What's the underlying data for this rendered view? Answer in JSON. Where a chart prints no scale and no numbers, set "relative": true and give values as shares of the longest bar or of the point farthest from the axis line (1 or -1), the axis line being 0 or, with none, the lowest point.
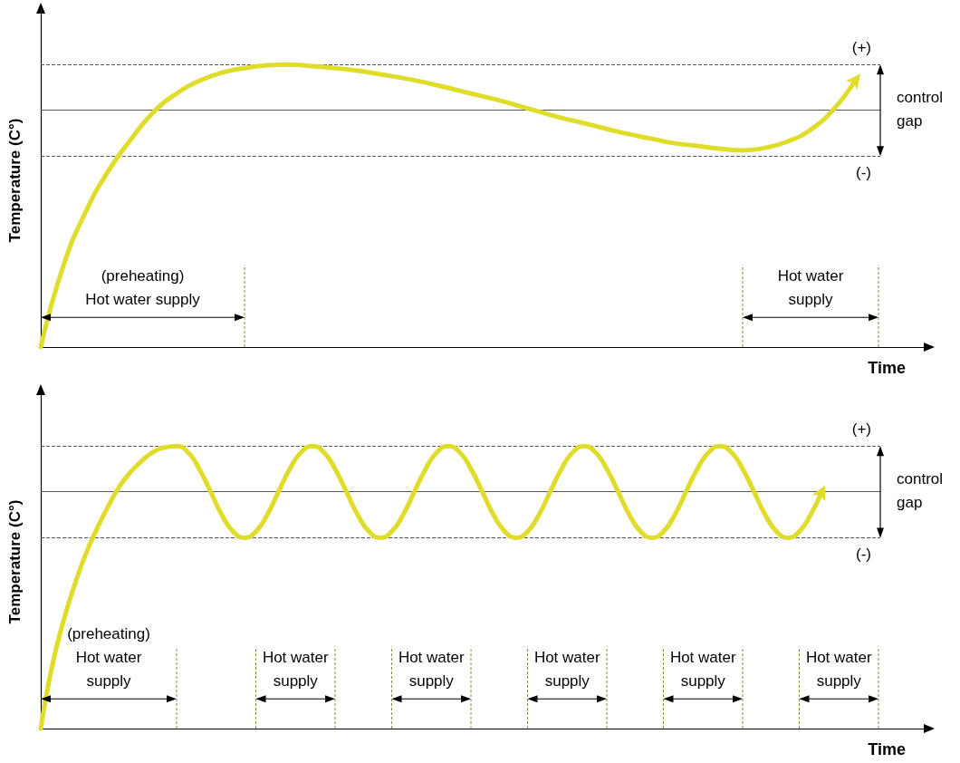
{
  "chart_data": [
    {
      "type": "line",
      "relative": true,
      "xlabel": "Time",
      "ylabel": "Temperature (C°)",
      "categories": [
        null,
        null,
        null,
        null,
        null,
        null,
        null,
        null,
        null,
        null,
        null,
        null,
        null,
        null,
        null,
        null,
        null,
        null,
        null,
        null,
        null,
        null,
        null,
        null,
        null,
        null,
        null,
        null,
        null,
        null,
        null,
        null,
        null,
        null,
        null,
        null,
        null,
        null,
        null,
        null
      ],
      "series": [
        {
          "color": "#e0dc2a",
          "values": [
            0,
            0.288,
            0.481,
            0.625,
            0.737,
            0.833,
            0.897,
            0.942,
            0.971,
            0.987,
            0.997,
            1.0,
            0.994,
            0.987,
            0.978,
            0.965,
            0.952,
            0.936,
            0.917,
            0.897,
            0.878,
            0.856,
            0.833,
            0.811,
            0.792,
            0.772,
            0.753,
            0.737,
            0.721,
            0.712,
            0.702,
            0.696,
            0.705,
            0.728,
            0.769,
            0.84,
            0.946,
            null,
            null,
            null
          ]
        }
      ],
      "ref_lines": [
        {
          "axis": "y",
          "value": 1.0,
          "label": "(+)",
          "line_style": "dashed"
        },
        {
          "axis": "y",
          "value": 0.84,
          "line_style": "solid"
        },
        {
          "axis": "y",
          "value": 0.676,
          "label": "(-)",
          "line_style": "dashed"
        }
      ],
      "annotations": [
        "(preheating)\nHot water supply",
        "Hot water\nsupply",
        "control\ngap"
      ]
    },
    {
      "type": "line",
      "relative": true,
      "xlabel": "Time",
      "ylabel": "Temperature (C°)",
      "categories": [
        null,
        null,
        null,
        null,
        null,
        null,
        null,
        null,
        null,
        null,
        null,
        null,
        null,
        null,
        null,
        null,
        null,
        null,
        null,
        null,
        null,
        null,
        null,
        null,
        null,
        null,
        null,
        null,
        null,
        null,
        null,
        null,
        null,
        null,
        null,
        null,
        null,
        null,
        null,
        null,
        null,
        null,
        null,
        null,
        null,
        null,
        null,
        null,
        null,
        null,
        null,
        null,
        null,
        null,
        null,
        null,
        null,
        null,
        null,
        null,
        null,
        null,
        null,
        null,
        null,
        null,
        null,
        null,
        null,
        null,
        null,
        null,
        null,
        null,
        null,
        null,
        null,
        null,
        null
      ],
      "series": [
        {
          "color": "#e0dc2a",
          "values": [
            0,
            0.22,
            0.38,
            0.51,
            0.62,
            0.71,
            0.79,
            0.86,
            0.91,
            0.95,
            0.98,
            0.995,
            1.0,
            0.978,
            0.919,
            0.838,
            0.756,
            0.697,
            0.675,
            0.697,
            0.756,
            0.838,
            0.919,
            0.978,
            1.0,
            0.978,
            0.919,
            0.838,
            0.756,
            0.697,
            0.675,
            0.697,
            0.756,
            0.838,
            0.919,
            0.978,
            1.0,
            0.978,
            0.919,
            0.838,
            0.756,
            0.697,
            0.675,
            0.697,
            0.756,
            0.838,
            0.919,
            0.978,
            1.0,
            0.978,
            0.919,
            0.838,
            0.756,
            0.697,
            0.675,
            0.697,
            0.756,
            0.838,
            0.919,
            0.978,
            1.0,
            0.978,
            0.919,
            0.838,
            0.756,
            0.697,
            0.675,
            0.697,
            0.756,
            0.838,
            null,
            null,
            null,
            null,
            null,
            null,
            null,
            null,
            null
          ]
        }
      ],
      "ref_lines": [
        {
          "axis": "y",
          "value": 1.0,
          "label": "(+)",
          "line_style": "dashed"
        },
        {
          "axis": "y",
          "value": 0.839,
          "line_style": "solid"
        },
        {
          "axis": "y",
          "value": 0.675,
          "label": "(-)",
          "line_style": "dashed"
        }
      ],
      "annotations": [
        "(preheating)\nHot water\nsupply",
        "Hot water\nsupply",
        "Hot water\nsupply",
        "Hot water\nsupply",
        "Hot water\nsupply",
        "Hot water\nsupply",
        "control\ngap"
      ]
    }
  ]
}
